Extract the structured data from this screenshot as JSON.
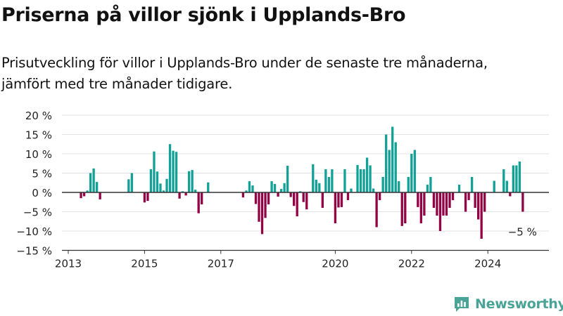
{
  "header": {
    "title": "Priserna på villor sjönk i Upplands-Bro",
    "subtitle_line1": "Prisutveckling för villor i Upplands-Bro under de senaste tre månaderna,",
    "subtitle_line2": "jämfört med tre månader tidigare."
  },
  "brand": {
    "name": "Newsworthy",
    "logo_icon": "newsworthy-logo-icon",
    "color": "#49a396"
  },
  "colors": {
    "positive": "#12a197",
    "negative": "#920245",
    "axis": "#333333",
    "grid": "#e3e3e3"
  },
  "chart_data": {
    "type": "bar",
    "title": "Priserna på villor sjönk i Upplands-Bro",
    "subtitle": "Prisutveckling för villor i Upplands-Bro under de senaste tre månaderna, jämfört med tre månader tidigare.",
    "xlabel": "",
    "ylabel": "",
    "x_unit": "month",
    "ylim": [
      -15,
      20
    ],
    "yticks": [
      20,
      15,
      10,
      5,
      0,
      -5,
      -10,
      -15
    ],
    "ytick_labels": [
      "20 %",
      "15 %",
      "10 %",
      "5 %",
      "0 %",
      "−5 %",
      "−10 %",
      "−15 %"
    ],
    "xticks": [
      2013,
      2015,
      2017,
      2020,
      2022,
      2024
    ],
    "grid": true,
    "annotation": {
      "text": "−5 %",
      "date": "2024-12"
    },
    "series": [
      {
        "name": "",
        "points": [
          [
            "2013-05",
            -1.5
          ],
          [
            "2013-06",
            -1.0
          ],
          [
            "2013-07",
            0.5
          ],
          [
            "2013-08",
            5.0
          ],
          [
            "2013-09",
            6.2
          ],
          [
            "2013-10",
            2.7
          ],
          [
            "2013-11",
            -1.8
          ],
          [
            "2014-08",
            3.4
          ],
          [
            "2014-09",
            5.0
          ],
          [
            "2015-01",
            -2.6
          ],
          [
            "2015-02",
            -2.2
          ],
          [
            "2015-03",
            6.0
          ],
          [
            "2015-04",
            10.6
          ],
          [
            "2015-05",
            5.4
          ],
          [
            "2015-06",
            2.3
          ],
          [
            "2015-07",
            0.5
          ],
          [
            "2015-08",
            3.5
          ],
          [
            "2015-09",
            12.5
          ],
          [
            "2015-10",
            10.8
          ],
          [
            "2015-11",
            10.5
          ],
          [
            "2015-12",
            -1.6
          ],
          [
            "2016-01",
            0.3
          ],
          [
            "2016-02",
            -0.8
          ],
          [
            "2016-03",
            5.5
          ],
          [
            "2016-04",
            5.8
          ],
          [
            "2016-05",
            0.7
          ],
          [
            "2016-06",
            -5.4
          ],
          [
            "2016-07",
            -3.1
          ],
          [
            "2016-09",
            2.6
          ],
          [
            "2017-08",
            -1.3
          ],
          [
            "2017-09",
            0.5
          ],
          [
            "2017-10",
            2.9
          ],
          [
            "2017-11",
            1.8
          ],
          [
            "2017-12",
            -3.0
          ],
          [
            "2018-01",
            -7.6
          ],
          [
            "2018-02",
            -10.8
          ],
          [
            "2018-03",
            -6.6
          ],
          [
            "2018-04",
            -3.1
          ],
          [
            "2018-05",
            2.9
          ],
          [
            "2018-06",
            2.2
          ],
          [
            "2018-07",
            -1.1
          ],
          [
            "2018-08",
            0.9
          ],
          [
            "2018-09",
            2.4
          ],
          [
            "2018-10",
            6.9
          ],
          [
            "2018-11",
            -1.2
          ],
          [
            "2018-12",
            -3.5
          ],
          [
            "2019-01",
            -6.2
          ],
          [
            "2019-02",
            0.3
          ],
          [
            "2019-03",
            -2.5
          ],
          [
            "2019-04",
            -4.4
          ],
          [
            "2019-05",
            0.2
          ],
          [
            "2019-06",
            7.3
          ],
          [
            "2019-07",
            3.3
          ],
          [
            "2019-08",
            2.4
          ],
          [
            "2019-09",
            -4.0
          ],
          [
            "2019-10",
            6.0
          ],
          [
            "2019-11",
            4.0
          ],
          [
            "2019-12",
            6.0
          ],
          [
            "2020-01",
            -8.0
          ],
          [
            "2020-02",
            -3.9
          ],
          [
            "2020-03",
            -3.8
          ],
          [
            "2020-04",
            6.0
          ],
          [
            "2020-05",
            -2.0
          ],
          [
            "2020-06",
            1.0
          ],
          [
            "2020-08",
            7.1
          ],
          [
            "2020-09",
            6.0
          ],
          [
            "2020-10",
            6.0
          ],
          [
            "2020-11",
            9.0
          ],
          [
            "2020-12",
            7.0
          ],
          [
            "2021-01",
            1.0
          ],
          [
            "2021-02",
            -9.0
          ],
          [
            "2021-03",
            -2.0
          ],
          [
            "2021-04",
            4.0
          ],
          [
            "2021-05",
            15.0
          ],
          [
            "2021-06",
            11.0
          ],
          [
            "2021-07",
            17.0
          ],
          [
            "2021-08",
            13.0
          ],
          [
            "2021-09",
            2.9
          ],
          [
            "2021-10",
            -8.7
          ],
          [
            "2021-11",
            -8.0
          ],
          [
            "2021-12",
            4.0
          ],
          [
            "2022-01",
            10.0
          ],
          [
            "2022-02",
            11.0
          ],
          [
            "2022-03",
            -3.8
          ],
          [
            "2022-04",
            -8.0
          ],
          [
            "2022-05",
            -6.0
          ],
          [
            "2022-06",
            2.0
          ],
          [
            "2022-07",
            4.0
          ],
          [
            "2022-08",
            -4.0
          ],
          [
            "2022-09",
            -6.0
          ],
          [
            "2022-10",
            -10.0
          ],
          [
            "2022-11",
            -6.0
          ],
          [
            "2022-12",
            -6.0
          ],
          [
            "2023-01",
            -4.0
          ],
          [
            "2023-02",
            -2.0
          ],
          [
            "2023-04",
            2.0
          ],
          [
            "2023-06",
            -5.0
          ],
          [
            "2023-07",
            -2.0
          ],
          [
            "2023-08",
            4.0
          ],
          [
            "2023-09",
            -4.0
          ],
          [
            "2023-10",
            -7.0
          ],
          [
            "2023-11",
            -12.0
          ],
          [
            "2023-12",
            -5.0
          ],
          [
            "2024-03",
            3.0
          ],
          [
            "2024-06",
            6.0
          ],
          [
            "2024-07",
            3.0
          ],
          [
            "2024-08",
            -1.0
          ],
          [
            "2024-09",
            7.0
          ],
          [
            "2024-10",
            7.0
          ],
          [
            "2024-11",
            8.0
          ],
          [
            "2024-12",
            -5.0
          ]
        ]
      }
    ]
  }
}
